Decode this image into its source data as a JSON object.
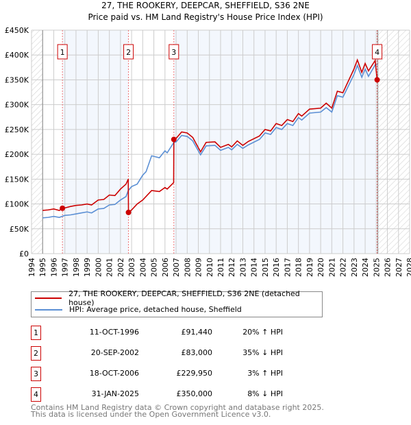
{
  "chart_data": {
    "type": "line",
    "title": "27, THE ROOKERY, DEEPCAR, SHEFFIELD, S36 2NE",
    "subtitle": "Price paid vs. HM Land Registry's House Price Index (HPI)",
    "xlim": [
      1994,
      2028
    ],
    "ylim": [
      0,
      450000
    ],
    "yticks": [
      {
        "v": 0,
        "label": "£0"
      },
      {
        "v": 50000,
        "label": "£50K"
      },
      {
        "v": 100000,
        "label": "£100K"
      },
      {
        "v": 150000,
        "label": "£150K"
      },
      {
        "v": 200000,
        "label": "£200K"
      },
      {
        "v": 250000,
        "label": "£250K"
      },
      {
        "v": 300000,
        "label": "£300K"
      },
      {
        "v": 350000,
        "label": "£350K"
      },
      {
        "v": 400000,
        "label": "£400K"
      },
      {
        "v": 450000,
        "label": "£450K"
      }
    ],
    "xticks": [
      "1994",
      "1995",
      "1996",
      "1997",
      "1998",
      "1999",
      "2000",
      "2001",
      "2002",
      "2003",
      "2004",
      "2005",
      "2006",
      "2007",
      "2008",
      "2009",
      "2010",
      "2011",
      "2012",
      "2013",
      "2014",
      "2015",
      "2016",
      "2017",
      "2018",
      "2019",
      "2020",
      "2021",
      "2022",
      "2023",
      "2024",
      "2025",
      "2026",
      "2027",
      "2028"
    ],
    "series": [
      {
        "name": "27, THE ROOKERY, DEEPCAR, SHEFFIELD, S36 2NE (detached house)",
        "color": "#cc0000",
        "points": [
          [
            1995,
            87
          ],
          [
            1995.5,
            88
          ],
          [
            1996,
            90
          ],
          [
            1996.5,
            87
          ],
          [
            1996.78,
            91.44
          ],
          [
            1997,
            92
          ],
          [
            1997.5,
            95
          ],
          [
            1998,
            97
          ],
          [
            1998.5,
            98
          ],
          [
            1999,
            100
          ],
          [
            1999.4,
            98
          ],
          [
            2000,
            108
          ],
          [
            2000.5,
            109
          ],
          [
            2001,
            118
          ],
          [
            2001.5,
            117
          ],
          [
            2002,
            130
          ],
          [
            2002.5,
            140
          ],
          [
            2002.7,
            150
          ],
          [
            2002.72,
            83
          ],
          [
            2003,
            88
          ],
          [
            2003.5,
            100
          ],
          [
            2004,
            108
          ],
          [
            2004.8,
            127
          ],
          [
            2005.5,
            125
          ],
          [
            2006,
            133
          ],
          [
            2006.2,
            130
          ],
          [
            2006.78,
            143
          ],
          [
            2006.8,
            229.95
          ],
          [
            2007,
            232
          ],
          [
            2007.5,
            245
          ],
          [
            2008,
            243
          ],
          [
            2008.5,
            234
          ],
          [
            2009.2,
            205
          ],
          [
            2009.7,
            224
          ],
          [
            2010.5,
            225
          ],
          [
            2011,
            214
          ],
          [
            2011.7,
            220
          ],
          [
            2012,
            215
          ],
          [
            2012.5,
            227
          ],
          [
            2013,
            218
          ],
          [
            2013.5,
            226
          ],
          [
            2014.5,
            237
          ],
          [
            2015,
            250
          ],
          [
            2015.5,
            247
          ],
          [
            2016,
            262
          ],
          [
            2016.5,
            258
          ],
          [
            2017,
            270
          ],
          [
            2017.5,
            266
          ],
          [
            2018,
            282
          ],
          [
            2018.3,
            277
          ],
          [
            2019,
            291
          ],
          [
            2020,
            293
          ],
          [
            2020.5,
            303
          ],
          [
            2021,
            293
          ],
          [
            2021.5,
            327
          ],
          [
            2022,
            324
          ],
          [
            2022.5,
            348
          ],
          [
            2023,
            372
          ],
          [
            2023.3,
            390
          ],
          [
            2023.7,
            365
          ],
          [
            2024,
            383
          ],
          [
            2024.3,
            368
          ],
          [
            2024.9,
            389
          ],
          [
            2025.08,
            350
          ]
        ]
      },
      {
        "name": "HPI: Average price, detached house, Sheffield",
        "color": "#5b8fd4",
        "points": [
          [
            1995,
            72
          ],
          [
            1995.5,
            73
          ],
          [
            1996,
            75
          ],
          [
            1996.5,
            73
          ],
          [
            1997,
            77
          ],
          [
            1997.5,
            78
          ],
          [
            1998,
            80
          ],
          [
            1998.5,
            82
          ],
          [
            1999,
            84
          ],
          [
            1999.4,
            82
          ],
          [
            2000,
            90
          ],
          [
            2000.5,
            91
          ],
          [
            2001,
            98
          ],
          [
            2001.5,
            99
          ],
          [
            2002,
            108
          ],
          [
            2002.5,
            115
          ],
          [
            2002.7,
            127
          ],
          [
            2003,
            135
          ],
          [
            2003.5,
            140
          ],
          [
            2004,
            158
          ],
          [
            2004.3,
            165
          ],
          [
            2004.8,
            197
          ],
          [
            2005.5,
            193
          ],
          [
            2006,
            207
          ],
          [
            2006.2,
            203
          ],
          [
            2006.8,
            224
          ],
          [
            2007,
            225
          ],
          [
            2007.5,
            238
          ],
          [
            2008,
            236
          ],
          [
            2008.5,
            227
          ],
          [
            2009.2,
            199
          ],
          [
            2009.7,
            217
          ],
          [
            2010.5,
            218
          ],
          [
            2011,
            208
          ],
          [
            2011.7,
            214
          ],
          [
            2012,
            209
          ],
          [
            2012.5,
            220
          ],
          [
            2013,
            212
          ],
          [
            2013.5,
            219
          ],
          [
            2014.5,
            230
          ],
          [
            2015,
            243
          ],
          [
            2015.5,
            240
          ],
          [
            2016,
            254
          ],
          [
            2016.5,
            250
          ],
          [
            2017,
            262
          ],
          [
            2017.5,
            258
          ],
          [
            2018,
            274
          ],
          [
            2018.3,
            269
          ],
          [
            2019,
            283
          ],
          [
            2020,
            285
          ],
          [
            2020.5,
            294
          ],
          [
            2021,
            285
          ],
          [
            2021.5,
            318
          ],
          [
            2022,
            315
          ],
          [
            2022.5,
            338
          ],
          [
            2023,
            361
          ],
          [
            2023.3,
            379
          ],
          [
            2023.7,
            355
          ],
          [
            2024,
            372
          ],
          [
            2024.3,
            357
          ],
          [
            2024.9,
            380
          ],
          [
            2025.08,
            381
          ]
        ]
      }
    ],
    "sales": [
      {
        "n": "1",
        "x": 1996.78,
        "y": 91440
      },
      {
        "n": "2",
        "x": 2002.72,
        "y": 83000
      },
      {
        "n": "3",
        "x": 2006.8,
        "y": 229950
      },
      {
        "n": "4",
        "x": 2025.08,
        "y": 350000
      }
    ]
  },
  "legend": {
    "red": "27, THE ROOKERY, DEEPCAR, SHEFFIELD, S36 2NE (detached house)",
    "blue": "HPI: Average price, detached house, Sheffield"
  },
  "table": [
    {
      "n": "1",
      "date": "11-OCT-1996",
      "price": "£91,440",
      "hpi": "20% ↑ HPI"
    },
    {
      "n": "2",
      "date": "20-SEP-2002",
      "price": "£83,000",
      "hpi": "35% ↓ HPI"
    },
    {
      "n": "3",
      "date": "18-OCT-2006",
      "price": "£229,950",
      "hpi": "3% ↑ HPI"
    },
    {
      "n": "4",
      "date": "31-JAN-2025",
      "price": "£350,000",
      "hpi": "8% ↓ HPI"
    }
  ],
  "footer": {
    "line1": "Contains HM Land Registry data © Crown copyright and database right 2025.",
    "line2": "This data is licensed under the Open Government Licence v3.0."
  }
}
